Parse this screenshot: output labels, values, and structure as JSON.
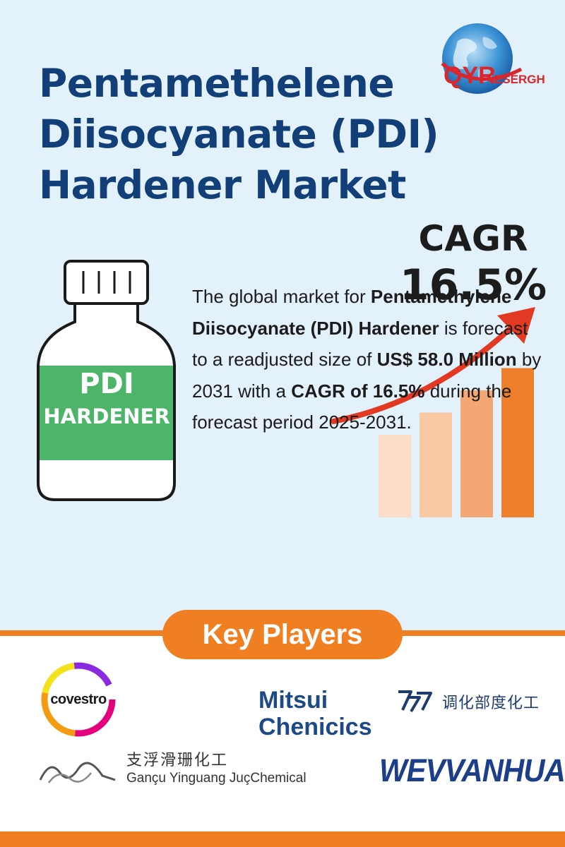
{
  "header": {
    "title_lines": [
      "Pentamethelene",
      "Diisocyanate (PDI)",
      "Hardener Market"
    ]
  },
  "brand": {
    "logo_text": "QYRESERGH",
    "logo_lead": "QYR",
    "logo_tail": "ESERGH"
  },
  "cagr": {
    "label": "CAGR",
    "value": "16.5%"
  },
  "product": {
    "label_line1": "PDI",
    "label_line2": "HARDENER"
  },
  "description": {
    "p1": "The global market for",
    "p2": "Pentamethylene Diisocyanate (PDI) Hardener",
    "p3": "is forecast to a readjusted size of",
    "p4": "US$ 58.0 Million",
    "p5": "by 2031 with a",
    "p6": "CAGR of 16.5%",
    "p7": "during the forecast period 2025-2031."
  },
  "growth_graphic": {
    "bar_levels": [
      0.52,
      0.66,
      0.8,
      0.94
    ],
    "bar_colors": [
      "#fbdcc6",
      "#f9c9a3",
      "#f2a774",
      "#ee7f2d"
    ],
    "arrow_color": "#e23a22"
  },
  "key_players": {
    "heading": "Key Players",
    "covestro": "covestro",
    "mitsui_line1": "Mitsui",
    "mitsui_line2": "Chenicics",
    "cn_company": "调化部度化工",
    "gansu_cn": "支浮滑珊化工",
    "gansu_en": "Gançu Yinguang JuçChemical",
    "wanhua": "WEVVANHUA"
  },
  "colors": {
    "title": "#123f78",
    "accent_orange": "#f07f22",
    "background": "#e3f1fb",
    "label_green": "#4db56a"
  }
}
